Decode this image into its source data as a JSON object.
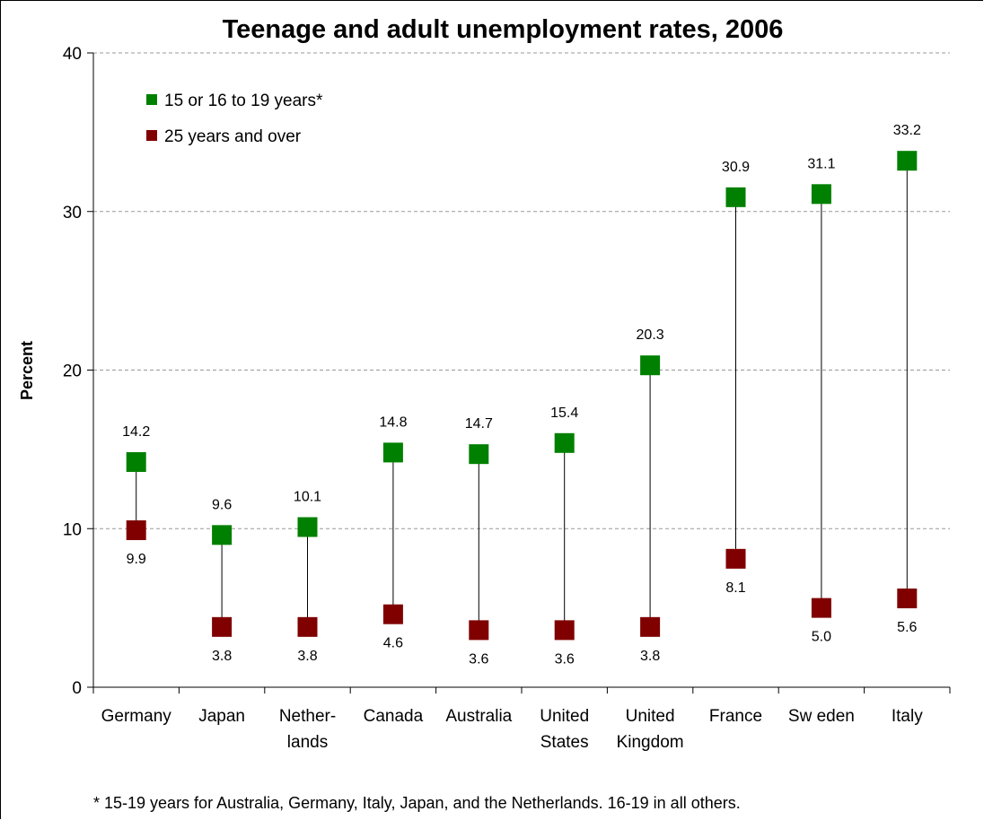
{
  "chart_data": {
    "type": "scatter",
    "title": "Teenage and adult unemployment rates, 2006",
    "ylabel": "Percent",
    "xlabel": "",
    "ylim": [
      0,
      40
    ],
    "yticks": [
      0,
      10,
      20,
      30,
      40
    ],
    "grid": true,
    "legend_position": "top-left",
    "categories": [
      [
        "Germany"
      ],
      [
        "Japan"
      ],
      [
        "Nether-",
        "lands"
      ],
      [
        "Canada"
      ],
      [
        "Australia"
      ],
      [
        "United",
        "States"
      ],
      [
        "United",
        "Kingdom"
      ],
      [
        "France"
      ],
      [
        "Sw eden"
      ],
      [
        "Italy"
      ]
    ],
    "series": [
      {
        "name": "15 or 16 to 19 years*",
        "color": "#008000",
        "values": [
          14.2,
          9.6,
          10.1,
          14.8,
          14.7,
          15.4,
          20.3,
          30.9,
          31.1,
          33.2
        ],
        "labels": [
          "14.2",
          "9.6",
          "10.1",
          "14.8",
          "14.7",
          "15.4",
          "20.3",
          "30.9",
          "31.1",
          "33.2"
        ]
      },
      {
        "name": "25 years and over",
        "color": "#800000",
        "values": [
          9.9,
          3.8,
          3.8,
          4.6,
          3.6,
          3.6,
          3.8,
          8.1,
          5.0,
          5.6
        ],
        "labels": [
          "9.9",
          "3.8",
          "3.8",
          "4.6",
          "3.6",
          "3.6",
          "3.8",
          "8.1",
          "5.0",
          "5.6"
        ]
      }
    ],
    "footnote": "* 15-19 years for Australia, Germany, Italy, Japan, and the Netherlands.  16-19 in all others."
  }
}
